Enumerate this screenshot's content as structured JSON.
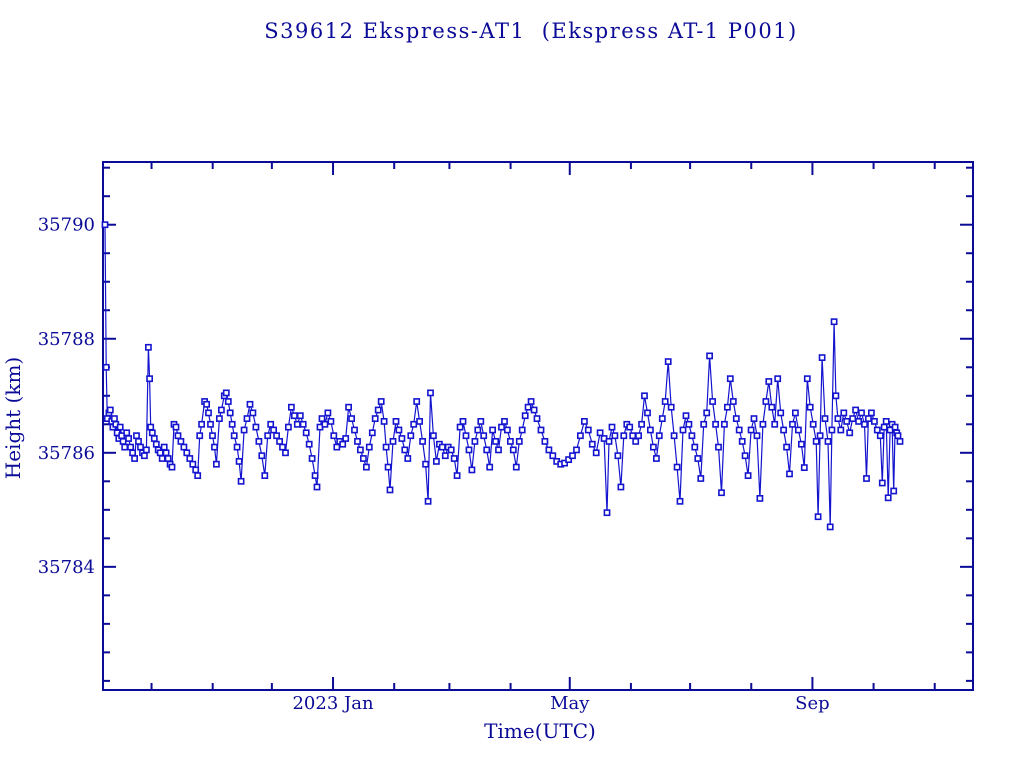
{
  "colors": {
    "axis": "#0b0b97",
    "text": "#0b0b97",
    "data": "#1414cf",
    "background": "#ffffff"
  },
  "chart_data": {
    "type": "line",
    "title": "S39612 Ekspress-AT1  (Ekspress AT-1 P001)",
    "xlabel": "Time(UTC)",
    "ylabel": "Height (km)",
    "marker": "open-square",
    "grid": false,
    "legend": "none",
    "x_unit": "days since 2022-09-06 UTC",
    "xlim": [
      0,
      441
    ],
    "ylim": [
      35781.84,
      35791.1
    ],
    "xticks_major": [
      {
        "value": 116.6,
        "label": "2023 Jan"
      },
      {
        "value": 236.6,
        "label": "May"
      },
      {
        "value": 359.6,
        "label": "Sep"
      }
    ],
    "xticks_minor": [
      24.6,
      55.6,
      85.6,
      147.6,
      175.6,
      206.6,
      267.6,
      297.6,
      328.6,
      390.6,
      421.6
    ],
    "yticks_major": [
      {
        "value": 35784,
        "label": "35784"
      },
      {
        "value": 35786,
        "label": "35786"
      },
      {
        "value": 35788,
        "label": "35788"
      },
      {
        "value": 35790,
        "label": "35790"
      }
    ],
    "yticks_minor": [
      35782,
      35782.5,
      35783,
      35783.5,
      35784.5,
      35785,
      35785.5,
      35786.5,
      35787,
      35787.5,
      35788.5,
      35789,
      35789.5,
      35790.5,
      35791
    ],
    "points": [
      [
        1.0,
        35790.0
      ],
      [
        1.6,
        35787.5
      ],
      [
        2.2,
        35786.6
      ],
      [
        3.0,
        35786.7
      ],
      [
        3.7,
        35786.75
      ],
      [
        4.4,
        35786.55
      ],
      [
        5.0,
        35786.45
      ],
      [
        5.8,
        35786.6
      ],
      [
        6.5,
        35786.5
      ],
      [
        7.2,
        35786.35
      ],
      [
        8.0,
        35786.25
      ],
      [
        8.7,
        35786.45
      ],
      [
        9.5,
        35786.3
      ],
      [
        10.2,
        35786.2
      ],
      [
        11.0,
        35786.1
      ],
      [
        12.0,
        35786.35
      ],
      [
        13.0,
        35786.25
      ],
      [
        14.0,
        35786.1
      ],
      [
        15.0,
        35786.0
      ],
      [
        16.0,
        35785.9
      ],
      [
        17.0,
        35786.3
      ],
      [
        18.0,
        35786.2
      ],
      [
        19.0,
        35786.1
      ],
      [
        20.0,
        35786.0
      ],
      [
        21.0,
        35785.95
      ],
      [
        22.0,
        35786.05
      ],
      [
        23.0,
        35787.85
      ],
      [
        23.6,
        35787.3
      ],
      [
        24.2,
        35786.45
      ],
      [
        25.0,
        35786.35
      ],
      [
        26.0,
        35786.25
      ],
      [
        27.0,
        35786.15
      ],
      [
        28.0,
        35786.05
      ],
      [
        29.0,
        35786.0
      ],
      [
        30.0,
        35785.9
      ],
      [
        31.0,
        35786.1
      ],
      [
        32.0,
        35786.0
      ],
      [
        33.0,
        35785.9
      ],
      [
        34.0,
        35785.8
      ],
      [
        35.0,
        35785.75
      ],
      [
        36.0,
        35786.5
      ],
      [
        37.0,
        35786.45
      ],
      [
        38.0,
        35786.3
      ],
      [
        39.5,
        35786.2
      ],
      [
        41.0,
        35786.1
      ],
      [
        42.5,
        35786.0
      ],
      [
        44.0,
        35785.9
      ],
      [
        45.5,
        35785.8
      ],
      [
        47.0,
        35785.7
      ],
      [
        48.0,
        35785.6
      ],
      [
        49.0,
        35786.3
      ],
      [
        50.0,
        35786.5
      ],
      [
        51.5,
        35786.9
      ],
      [
        52.5,
        35786.85
      ],
      [
        53.5,
        35786.7
      ],
      [
        54.5,
        35786.5
      ],
      [
        55.5,
        35786.3
      ],
      [
        56.5,
        35786.1
      ],
      [
        57.5,
        35785.8
      ],
      [
        59.0,
        35786.6
      ],
      [
        60.0,
        35786.75
      ],
      [
        61.5,
        35787.0
      ],
      [
        62.5,
        35787.05
      ],
      [
        63.5,
        35786.9
      ],
      [
        64.5,
        35786.7
      ],
      [
        65.5,
        35786.5
      ],
      [
        66.5,
        35786.3
      ],
      [
        68.0,
        35786.1
      ],
      [
        69.0,
        35785.85
      ],
      [
        70.0,
        35785.5
      ],
      [
        71.5,
        35786.4
      ],
      [
        73.0,
        35786.6
      ],
      [
        74.5,
        35786.85
      ],
      [
        76.0,
        35786.7
      ],
      [
        77.5,
        35786.45
      ],
      [
        79.0,
        35786.2
      ],
      [
        80.5,
        35785.95
      ],
      [
        82.0,
        35785.6
      ],
      [
        83.5,
        35786.3
      ],
      [
        85.0,
        35786.5
      ],
      [
        86.5,
        35786.4
      ],
      [
        88.0,
        35786.3
      ],
      [
        89.5,
        35786.2
      ],
      [
        91.0,
        35786.1
      ],
      [
        92.5,
        35786.0
      ],
      [
        94.0,
        35786.45
      ],
      [
        95.5,
        35786.8
      ],
      [
        97.0,
        35786.65
      ],
      [
        98.5,
        35786.5
      ],
      [
        100.0,
        35786.65
      ],
      [
        101.5,
        35786.5
      ],
      [
        103.0,
        35786.35
      ],
      [
        104.5,
        35786.15
      ],
      [
        106.0,
        35785.9
      ],
      [
        107.5,
        35785.6
      ],
      [
        108.5,
        35785.4
      ],
      [
        110.0,
        35786.45
      ],
      [
        111.0,
        35786.6
      ],
      [
        112.5,
        35786.5
      ],
      [
        114.0,
        35786.7
      ],
      [
        115.5,
        35786.55
      ],
      [
        117.0,
        35786.3
      ],
      [
        118.5,
        35786.1
      ],
      [
        120.0,
        35786.2
      ],
      [
        121.5,
        35786.15
      ],
      [
        123.0,
        35786.25
      ],
      [
        124.5,
        35786.8
      ],
      [
        126.0,
        35786.6
      ],
      [
        127.5,
        35786.4
      ],
      [
        129.0,
        35786.2
      ],
      [
        130.5,
        35786.05
      ],
      [
        132.0,
        35785.9
      ],
      [
        133.5,
        35785.75
      ],
      [
        135.0,
        35786.1
      ],
      [
        136.5,
        35786.35
      ],
      [
        138.0,
        35786.6
      ],
      [
        139.5,
        35786.75
      ],
      [
        141.0,
        35786.9
      ],
      [
        142.5,
        35786.55
      ],
      [
        143.5,
        35786.1
      ],
      [
        144.5,
        35785.75
      ],
      [
        145.5,
        35785.35
      ],
      [
        147.0,
        35786.2
      ],
      [
        148.5,
        35786.55
      ],
      [
        150.0,
        35786.4
      ],
      [
        151.5,
        35786.25
      ],
      [
        153.0,
        35786.05
      ],
      [
        154.5,
        35785.9
      ],
      [
        156.0,
        35786.3
      ],
      [
        157.5,
        35786.5
      ],
      [
        159.0,
        35786.9
      ],
      [
        160.5,
        35786.55
      ],
      [
        162.0,
        35786.2
      ],
      [
        163.5,
        35785.8
      ],
      [
        164.8,
        35785.15
      ],
      [
        166.0,
        35787.05
      ],
      [
        167.5,
        35786.3
      ],
      [
        169.0,
        35785.85
      ],
      [
        170.5,
        35786.15
      ],
      [
        172.0,
        35786.1
      ],
      [
        173.5,
        35785.95
      ],
      [
        175.0,
        35786.1
      ],
      [
        176.5,
        35786.05
      ],
      [
        178.0,
        35785.9
      ],
      [
        179.5,
        35785.6
      ],
      [
        181.0,
        35786.45
      ],
      [
        182.5,
        35786.55
      ],
      [
        184.0,
        35786.3
      ],
      [
        185.5,
        35786.05
      ],
      [
        187.0,
        35785.7
      ],
      [
        188.5,
        35786.2
      ],
      [
        190.0,
        35786.4
      ],
      [
        191.5,
        35786.55
      ],
      [
        193.0,
        35786.3
      ],
      [
        194.5,
        35786.05
      ],
      [
        196.0,
        35785.75
      ],
      [
        197.5,
        35786.4
      ],
      [
        199.0,
        35786.2
      ],
      [
        200.5,
        35786.05
      ],
      [
        202.0,
        35786.45
      ],
      [
        203.5,
        35786.55
      ],
      [
        205.0,
        35786.4
      ],
      [
        206.5,
        35786.2
      ],
      [
        208.0,
        35786.05
      ],
      [
        209.5,
        35785.75
      ],
      [
        211.0,
        35786.2
      ],
      [
        212.5,
        35786.4
      ],
      [
        214.0,
        35786.65
      ],
      [
        215.5,
        35786.8
      ],
      [
        217.0,
        35786.9
      ],
      [
        218.5,
        35786.75
      ],
      [
        220.0,
        35786.6
      ],
      [
        222.0,
        35786.4
      ],
      [
        224.0,
        35786.2
      ],
      [
        226.0,
        35786.05
      ],
      [
        228.0,
        35785.95
      ],
      [
        230.0,
        35785.85
      ],
      [
        232.0,
        35785.8
      ],
      [
        234.0,
        35785.82
      ],
      [
        236.0,
        35785.88
      ],
      [
        238.0,
        35785.95
      ],
      [
        240.0,
        35786.05
      ],
      [
        242.0,
        35786.3
      ],
      [
        244.0,
        35786.55
      ],
      [
        246.0,
        35786.4
      ],
      [
        248.0,
        35786.15
      ],
      [
        250.0,
        35786.0
      ],
      [
        252.0,
        35786.35
      ],
      [
        254.0,
        35786.25
      ],
      [
        255.5,
        35784.95
      ],
      [
        256.5,
        35786.2
      ],
      [
        258.0,
        35786.45
      ],
      [
        259.5,
        35786.3
      ],
      [
        261.0,
        35785.95
      ],
      [
        262.5,
        35785.4
      ],
      [
        264.0,
        35786.3
      ],
      [
        265.5,
        35786.5
      ],
      [
        267.0,
        35786.45
      ],
      [
        268.5,
        35786.3
      ],
      [
        270.0,
        35786.2
      ],
      [
        271.5,
        35786.3
      ],
      [
        273.0,
        35786.5
      ],
      [
        274.5,
        35787.0
      ],
      [
        276.0,
        35786.7
      ],
      [
        277.5,
        35786.4
      ],
      [
        279.0,
        35786.1
      ],
      [
        280.5,
        35785.9
      ],
      [
        282.0,
        35786.3
      ],
      [
        283.5,
        35786.6
      ],
      [
        285.0,
        35786.9
      ],
      [
        286.5,
        35787.6
      ],
      [
        288.0,
        35786.8
      ],
      [
        289.5,
        35786.3
      ],
      [
        291.0,
        35785.75
      ],
      [
        292.5,
        35785.15
      ],
      [
        294.0,
        35786.4
      ],
      [
        295.5,
        35786.65
      ],
      [
        297.0,
        35786.5
      ],
      [
        298.5,
        35786.3
      ],
      [
        300.0,
        35786.1
      ],
      [
        301.5,
        35785.9
      ],
      [
        303.0,
        35785.55
      ],
      [
        304.5,
        35786.5
      ],
      [
        306.0,
        35786.7
      ],
      [
        307.5,
        35787.7
      ],
      [
        309.0,
        35786.9
      ],
      [
        310.5,
        35786.5
      ],
      [
        312.0,
        35786.1
      ],
      [
        313.5,
        35785.3
      ],
      [
        315.0,
        35786.5
      ],
      [
        316.5,
        35786.8
      ],
      [
        318.0,
        35787.3
      ],
      [
        319.5,
        35786.9
      ],
      [
        321.0,
        35786.6
      ],
      [
        322.5,
        35786.4
      ],
      [
        324.0,
        35786.2
      ],
      [
        325.5,
        35785.95
      ],
      [
        327.0,
        35785.6
      ],
      [
        328.5,
        35786.4
      ],
      [
        330.0,
        35786.6
      ],
      [
        331.5,
        35786.3
      ],
      [
        333.0,
        35785.2
      ],
      [
        334.5,
        35786.5
      ],
      [
        336.0,
        35786.9
      ],
      [
        337.5,
        35787.25
      ],
      [
        339.0,
        35786.8
      ],
      [
        340.5,
        35786.5
      ],
      [
        342.0,
        35787.3
      ],
      [
        343.5,
        35786.7
      ],
      [
        345.0,
        35786.4
      ],
      [
        346.5,
        35786.1
      ],
      [
        348.0,
        35785.63
      ],
      [
        349.5,
        35786.5
      ],
      [
        351.0,
        35786.7
      ],
      [
        352.5,
        35786.4
      ],
      [
        354.0,
        35786.15
      ],
      [
        355.5,
        35785.74
      ],
      [
        357.0,
        35787.3
      ],
      [
        358.5,
        35786.8
      ],
      [
        360.0,
        35786.5
      ],
      [
        361.5,
        35786.2
      ],
      [
        362.5,
        35784.88
      ],
      [
        363.5,
        35786.3
      ],
      [
        364.5,
        35787.67
      ],
      [
        366.0,
        35786.6
      ],
      [
        367.5,
        35786.2
      ],
      [
        368.6,
        35784.7
      ],
      [
        369.5,
        35786.4
      ],
      [
        370.6,
        35788.3
      ],
      [
        371.5,
        35787.0
      ],
      [
        372.5,
        35786.6
      ],
      [
        374.0,
        35786.4
      ],
      [
        375.5,
        35786.7
      ],
      [
        377.0,
        35786.55
      ],
      [
        378.5,
        35786.35
      ],
      [
        380.0,
        35786.6
      ],
      [
        381.5,
        35786.75
      ],
      [
        383.0,
        35786.55
      ],
      [
        384.5,
        35786.7
      ],
      [
        386.0,
        35786.5
      ],
      [
        387.0,
        35785.55
      ],
      [
        388.0,
        35786.6
      ],
      [
        389.5,
        35786.7
      ],
      [
        391.0,
        35786.55
      ],
      [
        392.5,
        35786.4
      ],
      [
        394.0,
        35786.3
      ],
      [
        395.0,
        35785.47
      ],
      [
        396.0,
        35786.45
      ],
      [
        397.0,
        35786.55
      ],
      [
        398.0,
        35785.21
      ],
      [
        399.0,
        35786.4
      ],
      [
        400.0,
        35786.5
      ],
      [
        400.8,
        35785.33
      ],
      [
        401.5,
        35786.45
      ],
      [
        402.3,
        35786.35
      ],
      [
        403.0,
        35786.3
      ],
      [
        404.0,
        35786.2
      ]
    ]
  }
}
